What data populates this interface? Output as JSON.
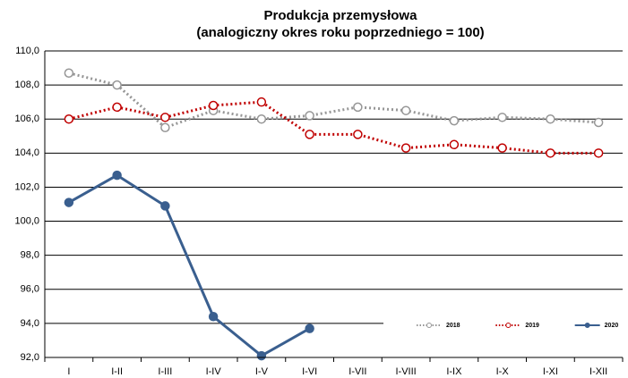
{
  "chart_data": {
    "type": "line",
    "title": "Produkcja przemysłowa",
    "subtitle": "(analogiczny okres roku poprzedniego = 100)",
    "categories": [
      "I",
      "I-II",
      "I-III",
      "I-IV",
      "I-V",
      "I-VI",
      "I-VII",
      "I-VIII",
      "I-IX",
      "I-X",
      "I-XI",
      "I-XII"
    ],
    "series": [
      {
        "name": "2018",
        "color": "#969696",
        "line_style": "dotted",
        "marker": "hollow",
        "values": [
          108.7,
          108.0,
          105.5,
          106.5,
          106.0,
          106.2,
          106.7,
          106.5,
          105.9,
          106.1,
          106.0,
          105.8
        ]
      },
      {
        "name": "2019",
        "color": "#c00000",
        "line_style": "dotted",
        "marker": "hollow",
        "values": [
          106.0,
          106.7,
          106.1,
          106.8,
          107.0,
          105.1,
          105.1,
          104.3,
          104.5,
          104.3,
          104.0,
          104.0
        ]
      },
      {
        "name": "2020",
        "color": "#3a5f8f",
        "line_style": "solid",
        "marker": "filled",
        "values": [
          101.1,
          102.7,
          100.9,
          94.4,
          92.1,
          93.7,
          null,
          null,
          null,
          null,
          null,
          null
        ]
      }
    ],
    "ylim": [
      92,
      110
    ],
    "yticks": [
      {
        "value": 92,
        "label": "92,0"
      },
      {
        "value": 94,
        "label": "94,0"
      },
      {
        "value": 96,
        "label": "96,0"
      },
      {
        "value": 98,
        "label": "98,0"
      },
      {
        "value": 100,
        "label": "100,0"
      },
      {
        "value": 102,
        "label": "102,0"
      },
      {
        "value": 104,
        "label": "104,0"
      },
      {
        "value": 106,
        "label": "106,0"
      },
      {
        "value": 108,
        "label": "108,0"
      },
      {
        "value": 110,
        "label": "110,0"
      }
    ],
    "grid": true,
    "legend": "bottom-right"
  }
}
